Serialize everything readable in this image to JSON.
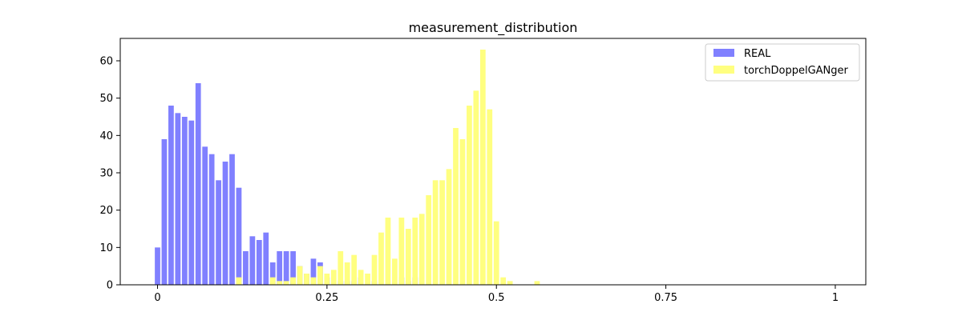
{
  "chart_data": {
    "type": "bar",
    "title": "measurement_distribution",
    "xlabel": "",
    "ylabel": "",
    "xlim": [
      -0.055,
      1.045
    ],
    "ylim": [
      0,
      66
    ],
    "grid": false,
    "legend_position": "top-right",
    "bin_width": 0.01,
    "x_ticks": [
      {
        "value": 0,
        "label": "0"
      },
      {
        "value": 0.25,
        "label": "0.25"
      },
      {
        "value": 0.5,
        "label": "0.5"
      },
      {
        "value": 0.75,
        "label": "0.75"
      },
      {
        "value": 1,
        "label": "1"
      }
    ],
    "y_ticks": [
      {
        "value": 0,
        "label": "0"
      },
      {
        "value": 10,
        "label": "10"
      },
      {
        "value": 20,
        "label": "20"
      },
      {
        "value": 30,
        "label": "30"
      },
      {
        "value": 40,
        "label": "40"
      },
      {
        "value": 50,
        "label": "50"
      },
      {
        "value": 60,
        "label": "60"
      }
    ],
    "x": [
      0,
      0.01,
      0.02,
      0.03,
      0.04,
      0.05,
      0.06,
      0.07,
      0.08,
      0.09,
      0.1,
      0.11,
      0.12,
      0.13,
      0.14,
      0.15,
      0.16,
      0.17,
      0.18,
      0.19,
      0.2,
      0.21,
      0.22,
      0.23,
      0.24,
      0.25,
      0.26,
      0.27,
      0.28,
      0.29,
      0.3,
      0.31,
      0.32,
      0.33,
      0.34,
      0.35,
      0.36,
      0.37,
      0.38,
      0.39,
      0.4,
      0.41,
      0.42,
      0.43,
      0.44,
      0.45,
      0.46,
      0.47,
      0.48,
      0.49,
      0.5,
      0.51,
      0.52,
      0.53,
      0.54,
      0.55,
      0.56
    ],
    "series": [
      {
        "name": "REAL",
        "color": "#8080ff",
        "values": [
          10,
          39,
          48,
          46,
          45,
          44,
          54,
          37,
          35,
          28,
          33,
          35,
          26,
          9,
          13,
          12,
          14,
          6,
          9,
          9,
          9,
          5,
          3,
          7,
          6,
          2,
          0,
          1,
          1,
          1,
          2,
          0,
          1,
          0,
          0,
          0,
          2,
          1,
          2,
          0,
          0,
          0,
          0,
          0,
          0,
          0,
          0,
          0,
          0,
          0,
          0,
          0,
          0,
          0,
          0,
          0,
          0
        ]
      },
      {
        "name": "torchDoppelGANger",
        "color": "#ffff80",
        "values": [
          0,
          0,
          0,
          0,
          0,
          0,
          0,
          0,
          0,
          0,
          0,
          0,
          2,
          0,
          0,
          0,
          0,
          2,
          1,
          1,
          2,
          5,
          3,
          2,
          5,
          3,
          4,
          9,
          6,
          8,
          4,
          3,
          8,
          14,
          18,
          7,
          18,
          15,
          18,
          19,
          24,
          28,
          28,
          31,
          42,
          39,
          48,
          52,
          63,
          47,
          17,
          2,
          1,
          0,
          0,
          0,
          1
        ]
      }
    ]
  }
}
